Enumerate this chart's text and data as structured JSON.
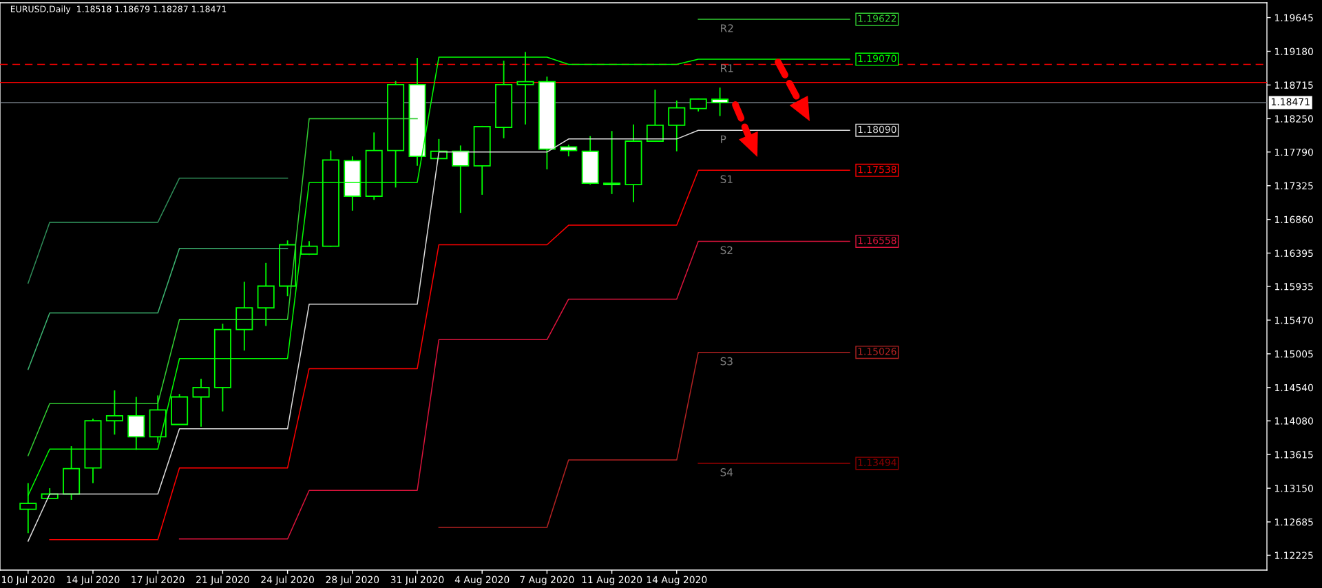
{
  "chart_data": {
    "type": "candlestick",
    "title": "EURUSD,Daily  1.18518 1.18679 1.18287 1.18471",
    "color": "#00ff00",
    "categories": [
      "10 Jul 2020",
      null,
      null,
      "14 Jul 2020",
      null,
      null,
      "17 Jul 2020",
      null,
      null,
      "21 Jul 2020",
      null,
      null,
      "24 Jul 2020",
      null,
      null,
      "28 Jul 2020",
      null,
      null,
      "31 Jul 2020",
      null,
      null,
      "4 Aug 2020",
      null,
      null,
      "7 Aug 2020",
      null,
      null,
      "11 Aug 2020",
      null,
      null,
      "14 Aug 2020",
      null,
      null,
      null,
      null,
      null,
      null,
      null,
      null,
      null,
      null,
      null,
      null,
      null,
      null,
      null,
      null,
      null,
      null,
      null,
      null,
      null,
      null,
      null,
      null,
      null,
      null,
      null
    ],
    "ohlc": [
      [
        1.1286,
        1.1322,
        1.1253,
        1.1294
      ],
      [
        1.1301,
        1.1315,
        1.13,
        1.1307
      ],
      [
        1.1307,
        1.1373,
        1.1299,
        1.1342
      ],
      [
        1.1343,
        1.1411,
        1.1322,
        1.1408
      ],
      [
        1.1408,
        1.145,
        1.1389,
        1.1415
      ],
      [
        1.1415,
        1.1441,
        1.1368,
        1.1386
      ],
      [
        1.1386,
        1.1443,
        1.1378,
        1.1423
      ],
      [
        1.1403,
        1.1445,
        1.1403,
        1.1441
      ],
      [
        1.1441,
        1.1466,
        1.14,
        1.1454
      ],
      [
        1.1454,
        1.1542,
        1.1421,
        1.1534
      ],
      [
        1.1534,
        1.16,
        1.1505,
        1.1564
      ],
      [
        1.1564,
        1.1626,
        1.1539,
        1.1594
      ],
      [
        1.1594,
        1.1657,
        1.158,
        1.1651
      ],
      [
        1.1638,
        1.1656,
        1.1637,
        1.1649
      ],
      [
        1.1649,
        1.1781,
        1.1648,
        1.1768
      ],
      [
        1.1767,
        1.1773,
        1.1698,
        1.1718
      ],
      [
        1.1718,
        1.1806,
        1.1713,
        1.1781
      ],
      [
        1.1781,
        1.1877,
        1.173,
        1.1872
      ],
      [
        1.1872,
        1.1909,
        1.176,
        1.1773
      ],
      [
        1.177,
        1.1797,
        1.177,
        1.178
      ],
      [
        1.178,
        1.1788,
        1.1695,
        1.176
      ],
      [
        1.176,
        1.1815,
        1.172,
        1.1814
      ],
      [
        1.1813,
        1.1905,
        1.1798,
        1.1872
      ],
      [
        1.1872,
        1.1917,
        1.1817,
        1.1876
      ],
      [
        1.1876,
        1.1883,
        1.1755,
        1.1783
      ],
      [
        1.1786,
        1.1789,
        1.1773,
        1.1781
      ],
      [
        1.178,
        1.1801,
        1.1734,
        1.1736
      ],
      [
        1.1736,
        1.1808,
        1.1721,
        1.1734
      ],
      [
        1.1734,
        1.1817,
        1.171,
        1.1794
      ],
      [
        1.1794,
        1.1865,
        1.1793,
        1.1816
      ],
      [
        1.1816,
        1.185,
        1.178,
        1.184
      ],
      [
        1.1839,
        1.1853,
        1.1835,
        1.1852
      ],
      [
        1.18518,
        1.18679,
        1.18287,
        1.18471
      ],
      null,
      null,
      null,
      null,
      null,
      null,
      null,
      null,
      null,
      null,
      null,
      null,
      null,
      null,
      null,
      null,
      null,
      null,
      null,
      null,
      null,
      null,
      null,
      null,
      null
    ],
    "series": [
      {
        "type": "line",
        "color": "#2e8b57",
        "values": [
          1.1598,
          1.1682,
          1.1682,
          1.1682,
          1.1682,
          1.1682,
          1.1682,
          1.1743,
          1.1743,
          1.1743,
          1.1743,
          1.1743,
          1.1743,
          null,
          null,
          null,
          null,
          null,
          null,
          null,
          null,
          null,
          null,
          null,
          null,
          null,
          null,
          null,
          null,
          null,
          null,
          null,
          null,
          null,
          null,
          null,
          null,
          null,
          null,
          null,
          null,
          null,
          null,
          null,
          null,
          null,
          null,
          null,
          null,
          null,
          null,
          null,
          null,
          null,
          null,
          null,
          null,
          null
        ]
      },
      {
        "type": "line",
        "color": "#3cb371",
        "values": [
          1.1479,
          1.1557,
          1.1557,
          1.1557,
          1.1557,
          1.1557,
          1.1557,
          1.1646,
          1.1646,
          1.1646,
          1.1646,
          1.1646,
          1.1646,
          null,
          null,
          null,
          null,
          null,
          null,
          null,
          null,
          null,
          null,
          null,
          null,
          null,
          null,
          null,
          null,
          null,
          null,
          null,
          null,
          null,
          null,
          null,
          null,
          null,
          null,
          null,
          null,
          null,
          null,
          null,
          null,
          null,
          null,
          null,
          null,
          null,
          null,
          null,
          null,
          null,
          null,
          null,
          null,
          null
        ]
      },
      {
        "type": "line",
        "name": "R2",
        "color": "#32cd32",
        "values": [
          1.136,
          1.1432,
          1.1432,
          1.1432,
          1.1432,
          1.1432,
          1.1432,
          1.1548,
          1.1548,
          1.1548,
          1.1548,
          1.1548,
          1.1548,
          1.1825,
          1.1825,
          1.1825,
          1.1825,
          1.1825,
          1.1825,
          null,
          null,
          null,
          null,
          null,
          null,
          null,
          null,
          null,
          null,
          null,
          null,
          1.19622,
          1.19622,
          1.19622,
          1.19622,
          1.19622,
          1.19622,
          1.19622,
          1.19622,
          null,
          null,
          null,
          null,
          null,
          null,
          null,
          null,
          null,
          null,
          null,
          null,
          null,
          null,
          null,
          null,
          null,
          null,
          null
        ],
        "value_labels": [
          null,
          null,
          null,
          null,
          null,
          null,
          null,
          null,
          null,
          null,
          null,
          null,
          null,
          null,
          null,
          null,
          null,
          null,
          null,
          null,
          null,
          null,
          null,
          null,
          null,
          null,
          null,
          null,
          null,
          null,
          null,
          null,
          null,
          null,
          null,
          null,
          null,
          null,
          "1.19622",
          null,
          null,
          null,
          null,
          null,
          null,
          null,
          null,
          null,
          null,
          null,
          null,
          null,
          null,
          null,
          null,
          null,
          null,
          null
        ]
      },
      {
        "type": "line",
        "name": "R1",
        "color": "#00ff00",
        "values": [
          1.1305,
          1.1369,
          1.1369,
          1.1369,
          1.1369,
          1.1369,
          1.1369,
          1.1494,
          1.1494,
          1.1494,
          1.1494,
          1.1494,
          1.1494,
          1.1737,
          1.1737,
          1.1737,
          1.1737,
          1.1737,
          1.1737,
          1.191,
          1.191,
          1.191,
          1.191,
          1.191,
          1.191,
          1.19,
          1.19,
          1.19,
          1.19,
          1.19,
          1.19,
          1.1907,
          1.1907,
          1.1907,
          1.1907,
          1.1907,
          1.1907,
          1.1907,
          1.1907,
          null,
          null,
          null,
          null,
          null,
          null,
          null,
          null,
          null,
          null,
          null,
          null,
          null,
          null,
          null,
          null,
          null,
          null,
          null
        ],
        "value_labels": [
          null,
          null,
          null,
          null,
          null,
          null,
          null,
          null,
          null,
          null,
          null,
          null,
          null,
          null,
          null,
          null,
          null,
          null,
          null,
          null,
          null,
          null,
          null,
          null,
          null,
          null,
          null,
          null,
          null,
          null,
          null,
          null,
          null,
          null,
          null,
          null,
          null,
          null,
          "1.19070",
          null,
          null,
          null,
          null,
          null,
          null,
          null,
          null,
          null,
          null,
          null,
          null,
          null,
          null,
          null,
          null,
          null,
          null,
          null
        ]
      },
      {
        "type": "line",
        "name": "P",
        "color": "#dcdcdc",
        "values": [
          1.1242,
          1.1307,
          1.1307,
          1.1307,
          1.1307,
          1.1307,
          1.1307,
          1.1397,
          1.1397,
          1.1397,
          1.1397,
          1.1397,
          1.1397,
          1.1569,
          1.1569,
          1.1569,
          1.1569,
          1.1569,
          1.1569,
          1.1779,
          1.1779,
          1.1779,
          1.1779,
          1.1779,
          1.1779,
          1.1797,
          1.1797,
          1.1797,
          1.1797,
          1.1797,
          1.1797,
          1.1809,
          1.1809,
          1.1809,
          1.1809,
          1.1809,
          1.1809,
          1.1809,
          1.1809,
          null,
          null,
          null,
          null,
          null,
          null,
          null,
          null,
          null,
          null,
          null,
          null,
          null,
          null,
          null,
          null,
          null,
          null,
          null
        ],
        "value_labels": [
          null,
          null,
          null,
          null,
          null,
          null,
          null,
          null,
          null,
          null,
          null,
          null,
          null,
          null,
          null,
          null,
          null,
          null,
          null,
          null,
          null,
          null,
          null,
          null,
          null,
          null,
          null,
          null,
          null,
          null,
          null,
          null,
          null,
          null,
          null,
          null,
          null,
          null,
          "1.18090",
          null,
          null,
          null,
          null,
          null,
          null,
          null,
          null,
          null,
          null,
          null,
          null,
          null,
          null,
          null,
          null,
          null,
          null,
          null
        ]
      },
      {
        "type": "line",
        "name": "S1",
        "color": "#ff0000",
        "values": [
          null,
          1.1244,
          1.1244,
          1.1244,
          1.1244,
          1.1244,
          1.1244,
          1.1343,
          1.1343,
          1.1343,
          1.1343,
          1.1343,
          1.1343,
          1.148,
          1.148,
          1.148,
          1.148,
          1.148,
          1.148,
          1.1651,
          1.1651,
          1.1651,
          1.1651,
          1.1651,
          1.1651,
          1.1678,
          1.1678,
          1.1678,
          1.1678,
          1.1678,
          1.1678,
          1.17538,
          1.17538,
          1.17538,
          1.17538,
          1.17538,
          1.17538,
          1.17538,
          1.17538,
          null,
          null,
          null,
          null,
          null,
          null,
          null,
          null,
          null,
          null,
          null,
          null,
          null,
          null,
          null,
          null,
          null,
          null,
          null
        ],
        "value_labels": [
          null,
          null,
          null,
          null,
          null,
          null,
          null,
          null,
          null,
          null,
          null,
          null,
          null,
          null,
          null,
          null,
          null,
          null,
          null,
          null,
          null,
          null,
          null,
          null,
          null,
          null,
          null,
          null,
          null,
          null,
          null,
          null,
          null,
          null,
          null,
          null,
          null,
          null,
          "1.17538",
          null,
          null,
          null,
          null,
          null,
          null,
          null,
          null,
          null,
          null,
          null,
          null,
          null,
          null,
          null,
          null,
          null,
          null,
          null
        ]
      },
      {
        "type": "line",
        "name": "S2",
        "color": "#dc143c",
        "values": [
          null,
          null,
          null,
          null,
          null,
          null,
          null,
          1.1245,
          1.1245,
          1.1245,
          1.1245,
          1.1245,
          1.1245,
          1.1312,
          1.1312,
          1.1312,
          1.1312,
          1.1312,
          1.1312,
          1.152,
          1.152,
          1.152,
          1.152,
          1.152,
          1.152,
          1.1576,
          1.1576,
          1.1576,
          1.1576,
          1.1576,
          1.1576,
          1.16558,
          1.16558,
          1.16558,
          1.16558,
          1.16558,
          1.16558,
          1.16558,
          1.16558,
          null,
          null,
          null,
          null,
          null,
          null,
          null,
          null,
          null,
          null,
          null,
          null,
          null,
          null,
          null,
          null,
          null,
          null,
          null
        ],
        "value_labels": [
          null,
          null,
          null,
          null,
          null,
          null,
          null,
          null,
          null,
          null,
          null,
          null,
          null,
          null,
          null,
          null,
          null,
          null,
          null,
          null,
          null,
          null,
          null,
          null,
          null,
          null,
          null,
          null,
          null,
          null,
          null,
          null,
          null,
          null,
          null,
          null,
          null,
          null,
          "1.16558",
          null,
          null,
          null,
          null,
          null,
          null,
          null,
          null,
          null,
          null,
          null,
          null,
          null,
          null,
          null,
          null,
          null,
          null,
          null
        ]
      },
      {
        "type": "line",
        "name": "S3",
        "color": "#b22222",
        "values": [
          null,
          null,
          null,
          null,
          null,
          null,
          null,
          null,
          null,
          null,
          null,
          null,
          null,
          null,
          null,
          null,
          null,
          null,
          null,
          1.1261,
          1.1261,
          1.1261,
          1.1261,
          1.1261,
          1.1261,
          1.1354,
          1.1354,
          1.1354,
          1.1354,
          1.1354,
          1.1354,
          1.15026,
          1.15026,
          1.15026,
          1.15026,
          1.15026,
          1.15026,
          1.15026,
          1.15026,
          null,
          null,
          null,
          null,
          null,
          null,
          null,
          null,
          null,
          null,
          null,
          null,
          null,
          null,
          null,
          null,
          null,
          null,
          null
        ],
        "value_labels": [
          null,
          null,
          null,
          null,
          null,
          null,
          null,
          null,
          null,
          null,
          null,
          null,
          null,
          null,
          null,
          null,
          null,
          null,
          null,
          null,
          null,
          null,
          null,
          null,
          null,
          null,
          null,
          null,
          null,
          null,
          null,
          null,
          null,
          null,
          null,
          null,
          null,
          null,
          "1.15026",
          null,
          null,
          null,
          null,
          null,
          null,
          null,
          null,
          null,
          null,
          null,
          null,
          null,
          null,
          null,
          null,
          null,
          null,
          null
        ]
      },
      {
        "type": "line",
        "name": "S4",
        "color": "#8b0000",
        "values": [
          null,
          null,
          null,
          null,
          null,
          null,
          null,
          null,
          null,
          null,
          null,
          null,
          null,
          null,
          null,
          null,
          null,
          null,
          null,
          null,
          null,
          null,
          null,
          null,
          null,
          null,
          null,
          null,
          null,
          null,
          null,
          1.13494,
          1.13494,
          1.13494,
          1.13494,
          1.13494,
          1.13494,
          1.13494,
          1.13494,
          null,
          null,
          null,
          null,
          null,
          null,
          null,
          null,
          null,
          null,
          null,
          null,
          null,
          null,
          null,
          null,
          null,
          null,
          null
        ],
        "value_labels": [
          null,
          null,
          null,
          null,
          null,
          null,
          null,
          null,
          null,
          null,
          null,
          null,
          null,
          null,
          null,
          null,
          null,
          null,
          null,
          null,
          null,
          null,
          null,
          null,
          null,
          null,
          null,
          null,
          null,
          null,
          null,
          null,
          null,
          null,
          null,
          null,
          null,
          null,
          "1.13494",
          null,
          null,
          null,
          null,
          null,
          null,
          null,
          null,
          null,
          null,
          null,
          null,
          null,
          null,
          null,
          null,
          null,
          null,
          null
        ]
      }
    ],
    "ref_lines": [
      {
        "axis": "y",
        "value": 1.1875,
        "color": "#ff0000"
      },
      {
        "axis": "y",
        "value": 1.19,
        "color": "#ff0000",
        "line_style": "dashed"
      },
      {
        "axis": "y",
        "value": 1.18471,
        "label": "1.18471",
        "color": "#8c96a0"
      }
    ],
    "ylim": [
      1.1202,
      1.1985
    ],
    "yticks": [
      {
        "value": 1.19645,
        "label": "1.19645"
      },
      {
        "value": 1.1918,
        "label": "1.19180"
      },
      {
        "value": 1.18715,
        "label": "1.18715"
      },
      {
        "value": 1.1825,
        "label": "1.18250"
      },
      {
        "value": 1.1779,
        "label": "1.17790"
      },
      {
        "value": 1.17325,
        "label": "1.17325"
      },
      {
        "value": 1.1686,
        "label": "1.16860"
      },
      {
        "value": 1.16395,
        "label": "1.16395"
      },
      {
        "value": 1.15935,
        "label": "1.15935"
      },
      {
        "value": 1.1547,
        "label": "1.15470"
      },
      {
        "value": 1.15005,
        "label": "1.15005"
      },
      {
        "value": 1.1454,
        "label": "1.14540"
      },
      {
        "value": 1.1408,
        "label": "1.14080"
      },
      {
        "value": 1.13615,
        "label": "1.13615"
      },
      {
        "value": 1.1315,
        "label": "1.13150"
      },
      {
        "value": 1.12685,
        "label": "1.12685"
      },
      {
        "value": 1.12225,
        "label": "1.12225"
      }
    ]
  }
}
